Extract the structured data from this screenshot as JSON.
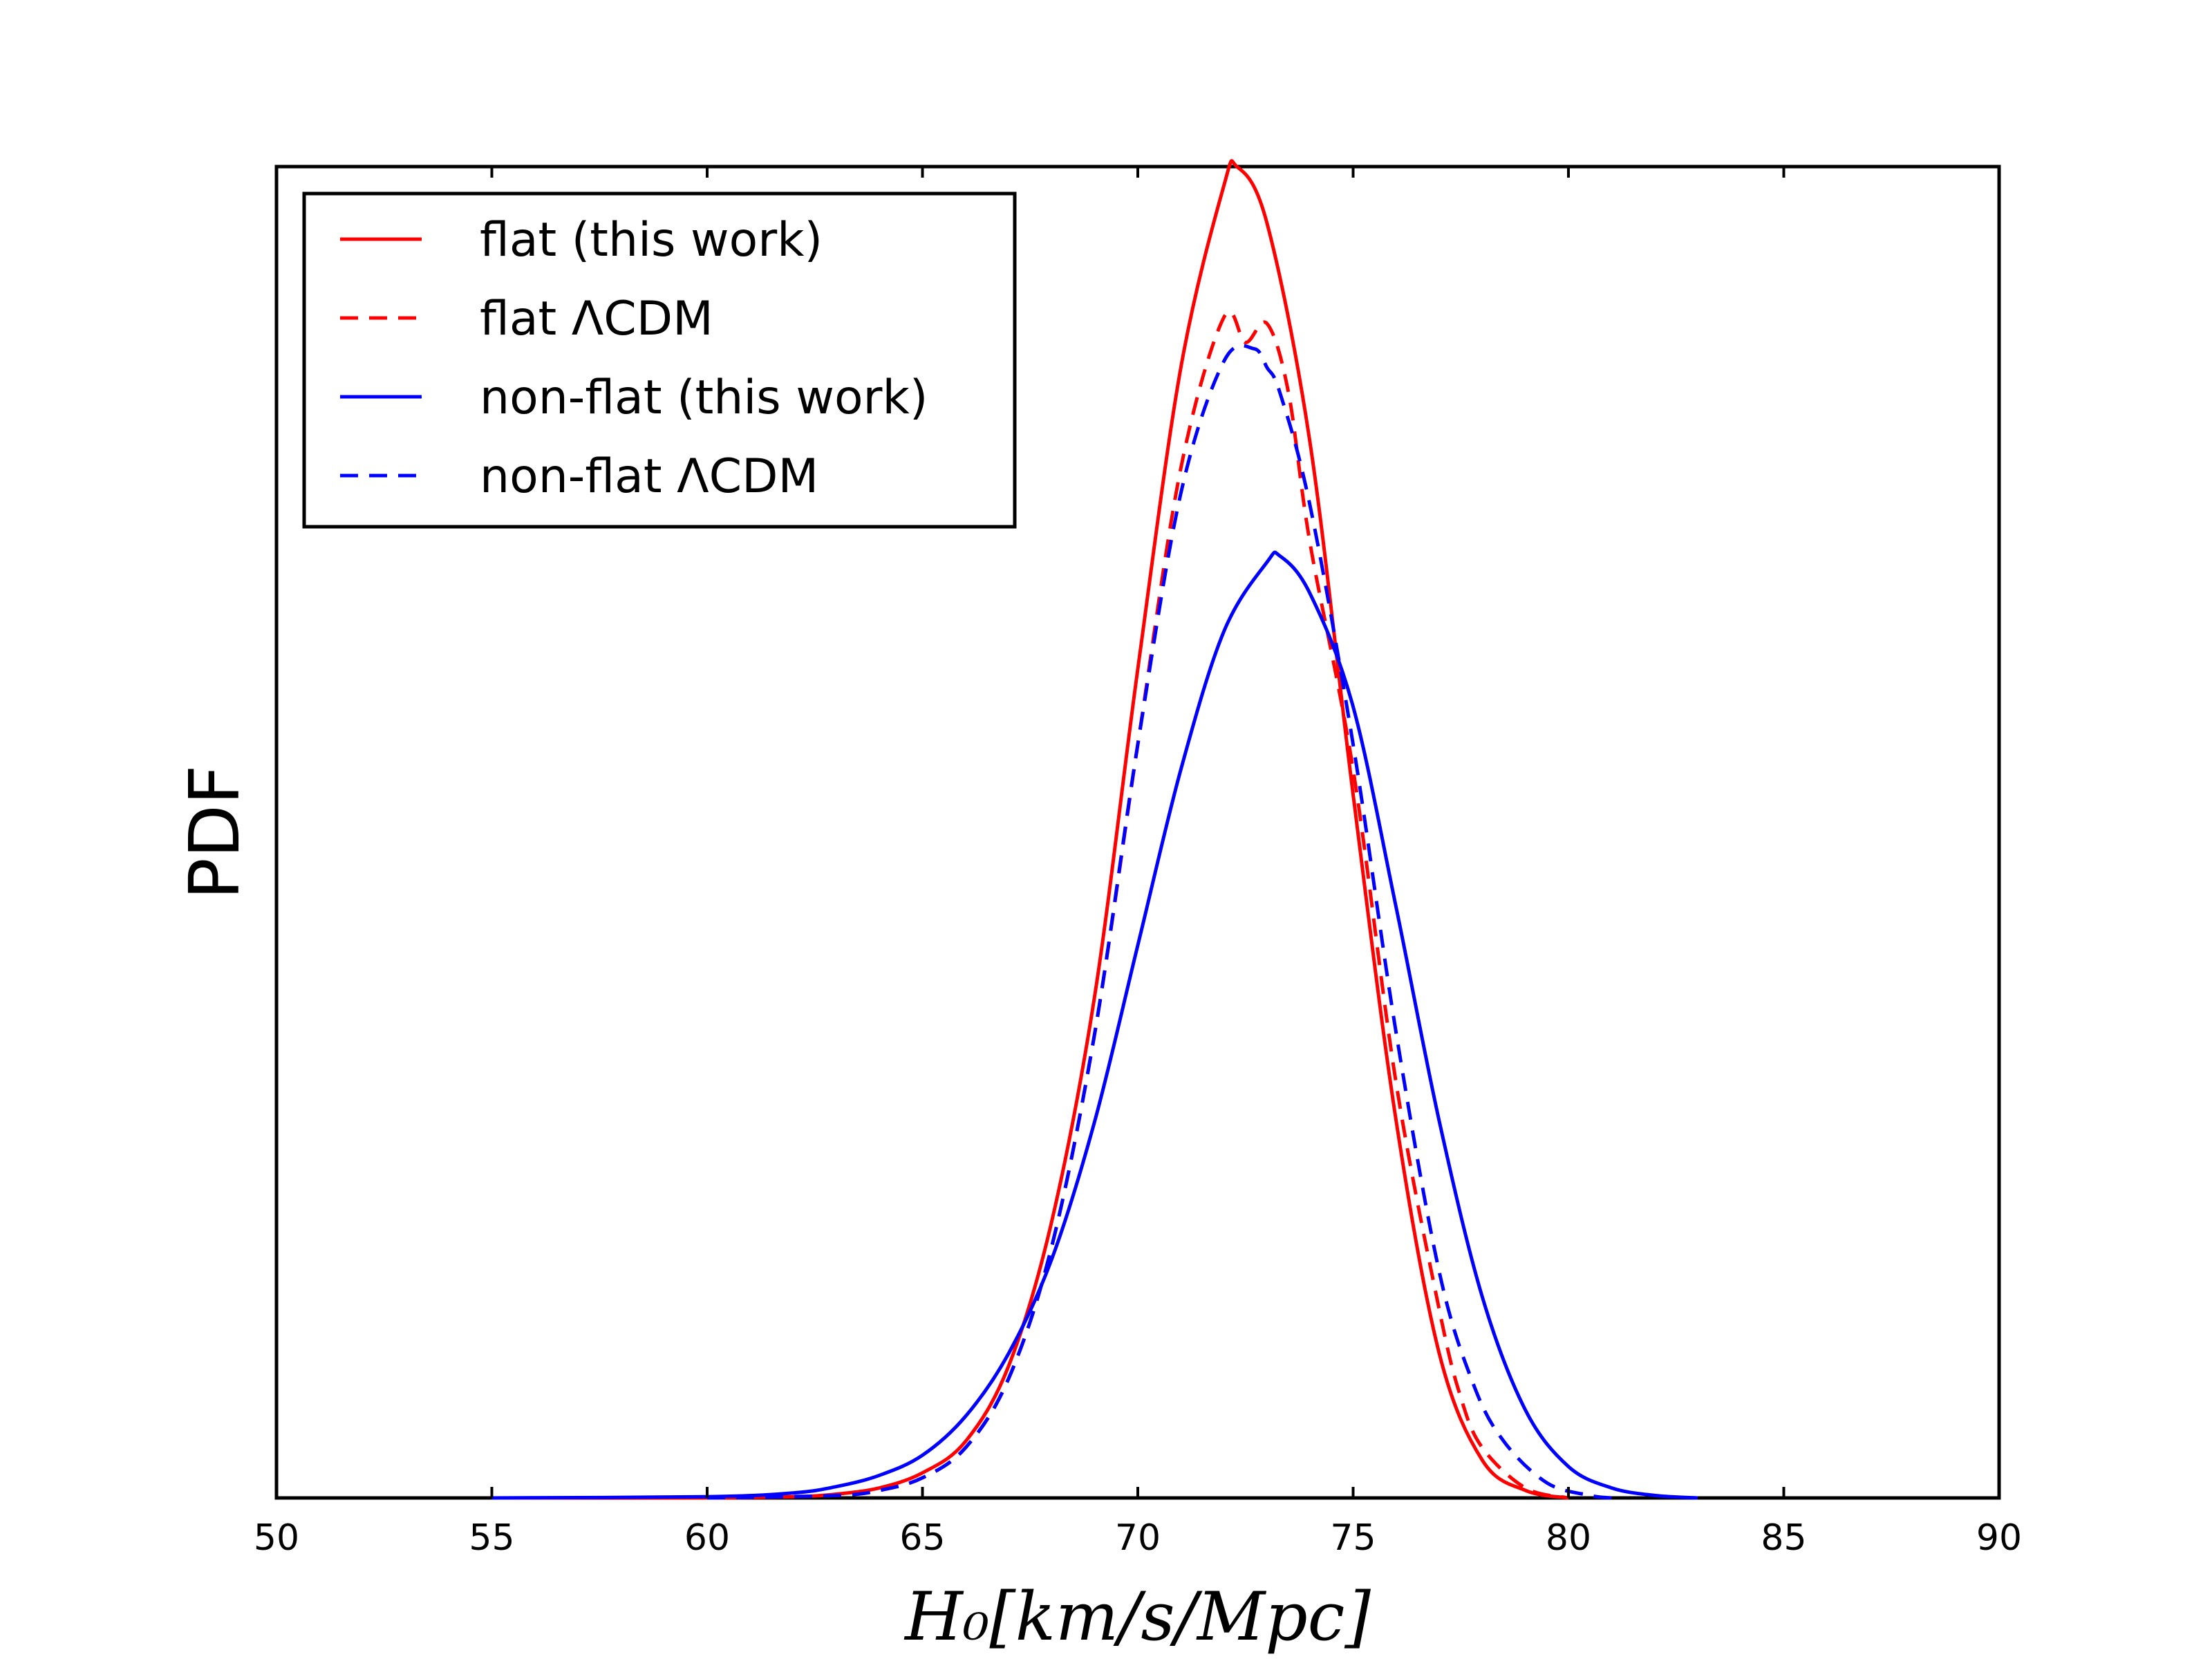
{
  "chart_data": {
    "type": "line",
    "xlabel": "H₀[km/s/Mpc]",
    "ylabel": "PDF",
    "xlim": [
      50,
      90
    ],
    "ylim": [
      0,
      1.06
    ],
    "x_ticks": [
      50,
      55,
      60,
      65,
      70,
      75,
      80,
      85,
      90
    ],
    "y_ticks_shown": false,
    "grid": false,
    "legend_position": "top-left",
    "series": [
      {
        "name": "flat (this work)",
        "color": "#ff0000",
        "style": "solid",
        "x": [
          55,
          60,
          62,
          63,
          64,
          65,
          66,
          67,
          68,
          69,
          70,
          71,
          72,
          72.3,
          73,
          74,
          75,
          76,
          77,
          78,
          79,
          80
        ],
        "y": [
          0.0,
          0.0,
          0.001,
          0.003,
          0.008,
          0.02,
          0.045,
          0.105,
          0.22,
          0.4,
          0.66,
          0.9,
          1.045,
          1.06,
          1.015,
          0.84,
          0.56,
          0.3,
          0.115,
          0.03,
          0.006,
          0.0
        ]
      },
      {
        "name": "flat ΛCDM",
        "color": "#ff0000",
        "style": "dashed",
        "x": [
          60,
          63,
          64,
          65,
          66,
          67,
          68,
          69,
          70,
          71,
          72,
          72.5,
          73,
          73.5,
          74,
          75,
          76,
          77,
          77.5,
          78,
          79,
          80
        ],
        "y": [
          0.0,
          0.002,
          0.006,
          0.016,
          0.04,
          0.095,
          0.2,
          0.37,
          0.6,
          0.82,
          0.94,
          0.92,
          0.935,
          0.88,
          0.76,
          0.58,
          0.33,
          0.15,
          0.08,
          0.04,
          0.008,
          0.0
        ]
      },
      {
        "name": "non-flat (this work)",
        "color": "#0000ff",
        "style": "solid",
        "x": [
          55,
          60,
          62,
          63,
          64,
          65,
          66,
          67,
          68,
          69,
          70,
          71,
          72,
          73,
          73.3,
          74,
          75,
          76,
          77,
          78,
          79,
          80,
          81,
          82,
          83
        ],
        "y": [
          0.0,
          0.001,
          0.004,
          0.009,
          0.018,
          0.034,
          0.065,
          0.115,
          0.19,
          0.3,
          0.44,
          0.58,
          0.69,
          0.745,
          0.75,
          0.72,
          0.63,
          0.47,
          0.3,
          0.16,
          0.07,
          0.025,
          0.008,
          0.002,
          0.0
        ]
      },
      {
        "name": "non-flat ΛCDM",
        "color": "#0000ff",
        "style": "dashed",
        "x": [
          60,
          63,
          64,
          65,
          66,
          67,
          68,
          69,
          70,
          71,
          72,
          72.7,
          73,
          73.3,
          74,
          75,
          76,
          77,
          77.8,
          78.5,
          79.5,
          80.5,
          81
        ],
        "y": [
          0.0,
          0.002,
          0.006,
          0.016,
          0.04,
          0.095,
          0.2,
          0.37,
          0.6,
          0.8,
          0.905,
          0.915,
          0.9,
          0.88,
          0.79,
          0.6,
          0.37,
          0.18,
          0.09,
          0.045,
          0.012,
          0.002,
          0.0
        ]
      }
    ]
  }
}
